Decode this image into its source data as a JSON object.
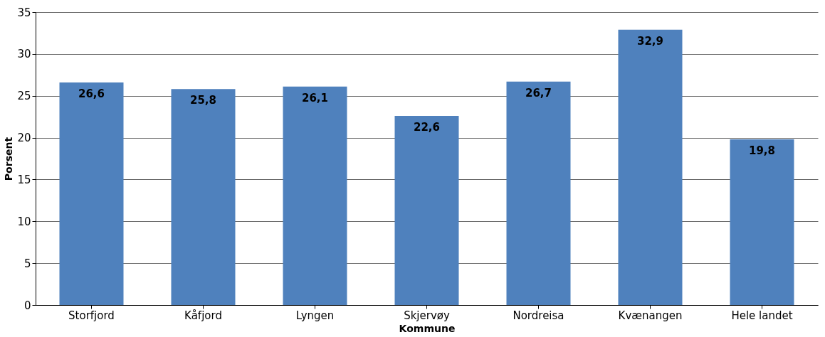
{
  "chart_data": {
    "type": "bar",
    "xlabel": "Kommune",
    "ylabel": "Porsent",
    "categories": [
      "Storfjord",
      "Kåfjord",
      "Lyngen",
      "Skjervøy",
      "Nordreisa",
      "Kvænangen",
      "Hele landet"
    ],
    "values": [
      26.6,
      25.8,
      26.1,
      22.6,
      26.7,
      32.9,
      19.8
    ],
    "value_labels": [
      "26,6",
      "25,8",
      "26,1",
      "22,6",
      "26,7",
      "32,9",
      "19,8"
    ],
    "color": "#4f81bd",
    "ylim": [
      0,
      35
    ],
    "yticks": [
      0,
      5,
      10,
      15,
      20,
      25,
      30,
      35
    ],
    "grid": "y"
  }
}
